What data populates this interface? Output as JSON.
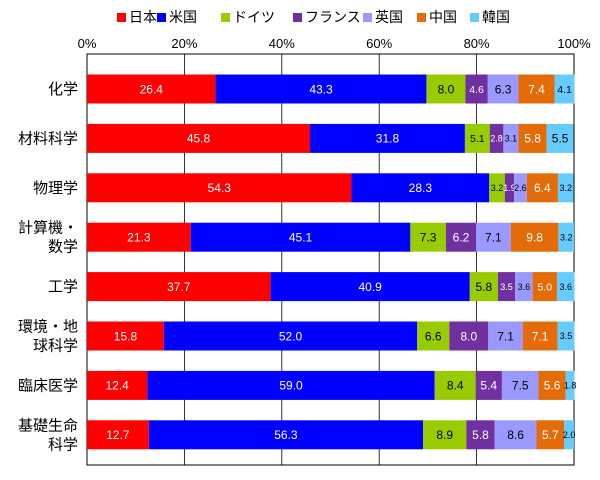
{
  "chart_data": {
    "type": "bar",
    "orientation": "horizontal",
    "stacked": "percent",
    "title": "",
    "xlabel": "",
    "ylabel": "",
    "xlim": [
      0,
      100
    ],
    "x_ticks": [
      "0%",
      "20%",
      "40%",
      "60%",
      "80%",
      "100%"
    ],
    "grid": true,
    "legend_position": "top",
    "categories": [
      [
        "化学"
      ],
      [
        "材料科学"
      ],
      [
        "物理学"
      ],
      [
        "計算機・",
        "数学"
      ],
      [
        "工学"
      ],
      [
        "環境・地",
        "球科学"
      ],
      [
        "臨床医学"
      ],
      [
        "基礎生命",
        "科学"
      ]
    ],
    "series": [
      {
        "name": "日本",
        "color": "#ff0000",
        "label_color": "#ffffff",
        "values": [
          26.4,
          45.8,
          54.3,
          21.3,
          37.7,
          15.8,
          12.4,
          12.7
        ],
        "labels": [
          "26.4",
          "45.8",
          "54.3",
          "21.3",
          "37.7",
          "15.8",
          "12.4",
          "12.7"
        ]
      },
      {
        "name": "米国",
        "color": "#0000ff",
        "label_color": "#ffffff",
        "values": [
          43.3,
          31.8,
          28.3,
          45.1,
          40.9,
          52.0,
          59.0,
          56.3
        ],
        "labels": [
          "43.3",
          "31.8",
          "28.3",
          "45.1",
          "40.9",
          "52.0",
          "59.0",
          "56.3"
        ]
      },
      {
        "name": "ドイツ",
        "color": "#99cc00",
        "label_color": "#000000",
        "values": [
          8.0,
          5.1,
          3.2,
          7.3,
          5.8,
          6.6,
          8.4,
          8.9
        ],
        "labels": [
          "8.0",
          "5.1",
          "3.2",
          "7.3",
          "5.8",
          "6.6",
          "8.4",
          "8.9"
        ]
      },
      {
        "name": "フランス",
        "color": "#7030a0",
        "label_color": "#ffffff",
        "values": [
          4.6,
          2.8,
          1.9,
          6.2,
          3.5,
          8.0,
          5.4,
          5.8
        ],
        "labels": [
          "4.6",
          "2.8",
          "1.9",
          "6.2",
          "3.5",
          "8.0",
          "5.4",
          "5.8"
        ]
      },
      {
        "name": "英国",
        "color": "#9999ff",
        "label_color": "#000000",
        "values": [
          6.3,
          3.1,
          2.6,
          7.1,
          3.6,
          7.1,
          7.5,
          8.6
        ],
        "labels": [
          "6.3",
          "3.1",
          "2.6",
          "7.1",
          "3.6",
          "7.1",
          "7.5",
          "8.6"
        ]
      },
      {
        "name": "中国",
        "color": "#e36c09",
        "label_color": "#ffffff",
        "values": [
          7.4,
          5.8,
          6.4,
          9.8,
          5.0,
          7.1,
          5.6,
          5.7
        ],
        "labels": [
          "7.4",
          "5.8",
          "6.4",
          "9.8",
          "5.0",
          "7.1",
          "5.6",
          "5.7"
        ]
      },
      {
        "name": "韓国",
        "color": "#66ccff",
        "label_color": "#000000",
        "values": [
          4.1,
          5.5,
          3.2,
          3.2,
          3.6,
          3.5,
          1.8,
          2.0
        ],
        "labels": [
          "4.1",
          "5.5",
          "3.2",
          "3.2",
          "3.6",
          "3.5",
          "1.8",
          "2.0"
        ]
      }
    ]
  }
}
